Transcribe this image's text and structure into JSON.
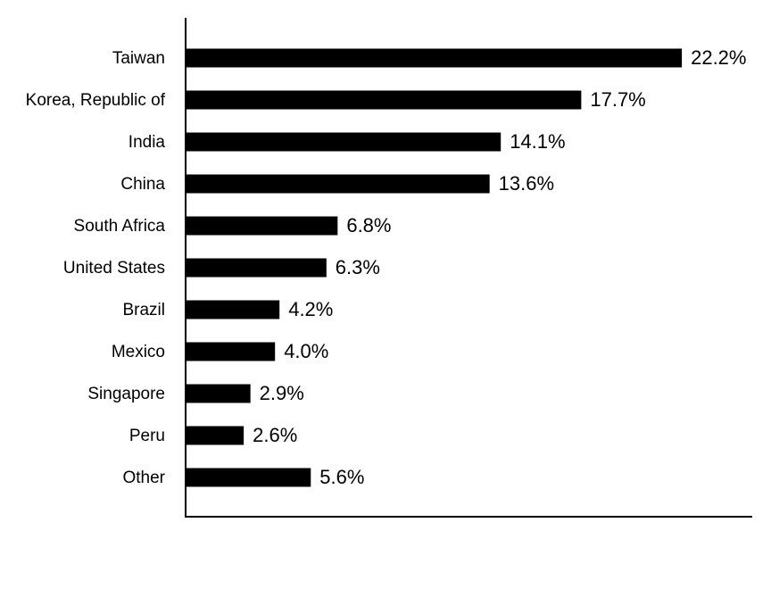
{
  "chart_data": {
    "type": "barh",
    "categories": [
      "Taiwan",
      "Korea, Republic of",
      "India",
      "China",
      "South Africa",
      "United States",
      "Brazil",
      "Mexico",
      "Singapore",
      "Peru",
      "Other"
    ],
    "values": [
      22.2,
      17.7,
      14.1,
      13.6,
      6.8,
      6.3,
      4.2,
      4.0,
      2.9,
      2.6,
      5.6
    ],
    "value_labels": [
      "22.2%",
      "17.7%",
      "14.1%",
      "13.6%",
      "6.8%",
      "6.3%",
      "4.2%",
      "4.0%",
      "2.9%",
      "2.6%",
      "5.6%"
    ],
    "color": "#000000",
    "xlim": [
      0,
      25.35
    ]
  }
}
